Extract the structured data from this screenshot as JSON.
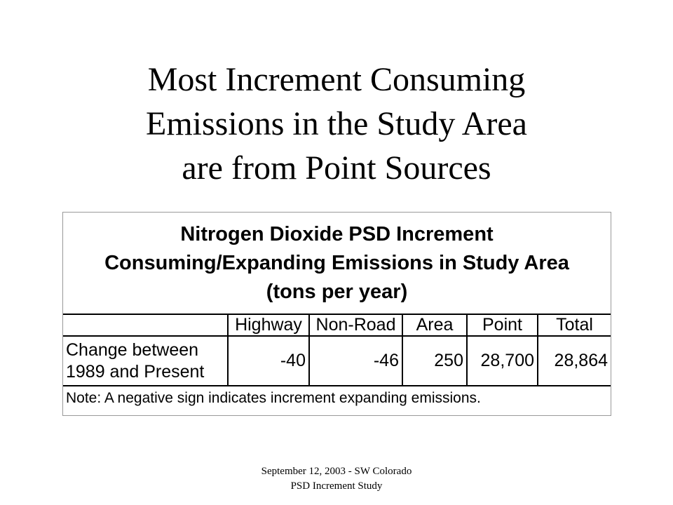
{
  "slide": {
    "title_lines": [
      "Most Increment Consuming",
      "Emissions in the Study Area",
      "are from Point Sources"
    ],
    "table": {
      "title_lines": [
        "Nitrogen Dioxide PSD Increment",
        "Consuming/Expanding Emissions in Study Area",
        "(tons per year)"
      ],
      "columns": [
        "Highway",
        "Non-Road",
        "Area",
        "Point",
        "Total"
      ],
      "row_label_lines": [
        "Change between",
        "1989 and Present"
      ],
      "values": [
        "-40",
        "-46",
        "250",
        "28,700",
        "28,864"
      ],
      "note": "Note: A negative sign indicates increment expanding emissions."
    },
    "footer_lines": [
      "September 12, 2003 - SW Colorado",
      "PSD Increment Study"
    ]
  }
}
